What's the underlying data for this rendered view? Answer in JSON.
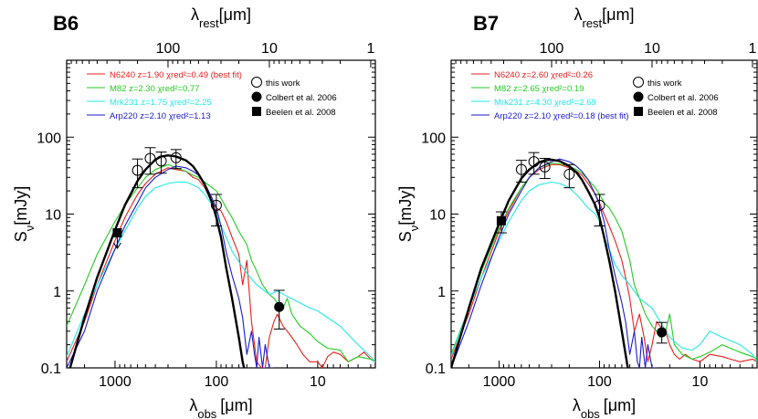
{
  "chart_data": [
    {
      "type": "line",
      "title": "B6",
      "xlabel_bottom": "λobs [μm]",
      "xlabel_top": "λrest[μm]",
      "ylabel": "Sν[mJy]",
      "xscale": "log",
      "yscale": "log",
      "xlim": [
        3000,
        2.7
      ],
      "ylim": [
        0.1,
        1000
      ],
      "x_ticks_bottom": [
        "1000",
        "100",
        "10"
      ],
      "x_ticks_top": [
        "100",
        "10",
        "1"
      ],
      "y_ticks": [
        "0.1",
        "1",
        "10",
        "100"
      ],
      "series": [
        {
          "name": "N6240",
          "color": "#e8201c",
          "label": "N6240  z=1.90  χred²=0.49 (best fit)",
          "x": [
            3000,
            2000,
            1500,
            1000,
            800,
            600,
            500,
            400,
            300,
            250,
            200,
            170,
            150,
            130,
            110,
            100,
            90,
            80,
            70,
            60,
            55,
            50,
            45,
            40,
            36,
            33,
            30,
            27,
            25,
            22,
            20,
            18,
            16,
            14,
            12,
            10,
            9,
            8,
            7,
            6,
            5,
            4,
            3.5,
            3,
            2.7
          ],
          "y": [
            0.12,
            0.4,
            1.2,
            4.5,
            9,
            18,
            25,
            33,
            40,
            38,
            36,
            30,
            28,
            22,
            14,
            12,
            11,
            8,
            5,
            3,
            1.2,
            2.5,
            0.4,
            0.12,
            0.1,
            0.1,
            0.25,
            0.4,
            0.5,
            0.35,
            0.3,
            0.25,
            0.2,
            0.15,
            0.12,
            0.12,
            0.1,
            0.14,
            0.16,
            0.15,
            0.12,
            0.14,
            0.16,
            0.13,
            0.12
          ]
        },
        {
          "name": "M82",
          "color": "#22cc22",
          "label": "M82  z=2.30  χred²=0.77",
          "x": [
            3000,
            2000,
            1500,
            1000,
            800,
            600,
            500,
            400,
            300,
            250,
            200,
            170,
            150,
            130,
            110,
            100,
            90,
            80,
            70,
            60,
            50,
            45,
            40,
            35,
            30,
            27,
            25,
            22,
            20,
            18,
            15,
            12,
            10,
            8,
            6,
            5,
            4,
            3,
            2.7
          ],
          "y": [
            0.35,
            1.2,
            3,
            8,
            13,
            22,
            30,
            38,
            44,
            40,
            36,
            32,
            30,
            26,
            22,
            20,
            16,
            12,
            9,
            6,
            4,
            2.5,
            1.8,
            1.2,
            0.9,
            0.8,
            0.7,
            0.6,
            0.8,
            0.5,
            0.35,
            0.28,
            0.22,
            0.18,
            0.17,
            0.12,
            0.14,
            0.13,
            0.12
          ]
        },
        {
          "name": "Mrk231",
          "color": "#22e8e8",
          "label": "Mrk231  z=1.75  χred²=2.25",
          "x": [
            3000,
            2000,
            1500,
            1000,
            800,
            600,
            500,
            400,
            300,
            250,
            200,
            170,
            150,
            130,
            110,
            100,
            90,
            80,
            70,
            60,
            50,
            40,
            30,
            25,
            20,
            15,
            12,
            10,
            8,
            6,
            4,
            3,
            2.7
          ],
          "y": [
            0.14,
            0.5,
            1.2,
            3.5,
            6,
            12,
            17,
            22,
            25,
            26,
            26,
            24,
            22,
            18,
            13,
            10,
            7,
            5,
            3.3,
            2.4,
            1.7,
            1.2,
            0.9,
            1.0,
            0.85,
            0.7,
            0.6,
            0.55,
            0.45,
            0.35,
            0.2,
            0.14,
            0.12
          ]
        },
        {
          "name": "Arp220",
          "color": "#1a1acc",
          "label": "Arp220  z=2.10  χred²=1.13",
          "x": [
            3000,
            2000,
            1500,
            1000,
            800,
            600,
            500,
            400,
            300,
            250,
            200,
            170,
            150,
            130,
            110,
            100,
            90,
            80,
            70,
            60,
            55,
            50,
            45,
            42,
            40,
            38,
            35,
            33,
            30,
            27
          ],
          "y": [
            0.1,
            0.3,
            1,
            3.5,
            7,
            14,
            22,
            30,
            38,
            42,
            40,
            36,
            32,
            25,
            16,
            12,
            7,
            3.2,
            1.6,
            0.8,
            0.45,
            0.15,
            0.3,
            0.15,
            0.1,
            0.25,
            0.1,
            0.2,
            0.1,
            0.1
          ]
        },
        {
          "name": "model",
          "color": "#000000",
          "label": "",
          "x": [
            3000,
            2000,
            1500,
            1000,
            800,
            600,
            500,
            400,
            350,
            300,
            250,
            200,
            170,
            150,
            130,
            110,
            100,
            90,
            80,
            70,
            60,
            55,
            50
          ],
          "y": [
            0.07,
            0.45,
            1.5,
            6.2,
            13,
            27,
            38,
            51,
            56,
            58,
            56,
            50,
            42,
            33,
            24,
            14,
            9,
            5,
            2,
            0.8,
            0.25,
            0.12,
            0.07
          ]
        }
      ],
      "points": [
        {
          "marker": "square-filled",
          "x": 950,
          "y": 5.7,
          "upper_limit": true
        },
        {
          "marker": "circle-open",
          "x": 600,
          "y": 37,
          "err_lo": 15,
          "err_hi": 15
        },
        {
          "marker": "circle-open",
          "x": 450,
          "y": 53,
          "err_lo": 20,
          "err_hi": 20
        },
        {
          "marker": "circle-open",
          "x": 350,
          "y": 49,
          "err_lo": 15,
          "err_hi": 15
        },
        {
          "marker": "circle-open",
          "x": 250,
          "y": 54,
          "err_lo": 15,
          "err_hi": 15
        },
        {
          "marker": "circle-open",
          "x": 100,
          "y": 13,
          "err_lo": 6,
          "err_hi": 5
        },
        {
          "marker": "circle-filled",
          "x": 24,
          "y": 0.62,
          "err_lo": 0.3,
          "err_hi": 0.4
        }
      ],
      "legend": [
        "this work",
        "Colbert et al. 2006",
        "Beelen et al. 2008"
      ]
    },
    {
      "type": "line",
      "title": "B7",
      "xlabel_bottom": "λobs [μm]",
      "xlabel_top": "λrest[μm]",
      "ylabel": "Sν[mJy]",
      "xscale": "log",
      "yscale": "log",
      "xlim": [
        3000,
        2.7
      ],
      "ylim": [
        0.1,
        1000
      ],
      "x_ticks_bottom": [
        "1000",
        "100",
        "10"
      ],
      "x_ticks_top": [
        "100",
        "10",
        "1"
      ],
      "y_ticks": [
        "0.1",
        "1",
        "10",
        "100"
      ],
      "series": [
        {
          "name": "N6240",
          "color": "#e8201c",
          "label": "N6240  z=2.60  χred²=0.26",
          "x": [
            3000,
            2000,
            1500,
            1000,
            800,
            600,
            500,
            400,
            300,
            250,
            200,
            170,
            150,
            130,
            110,
            100,
            90,
            80,
            70,
            60,
            55,
            50,
            45,
            40,
            36,
            33,
            30,
            27,
            25,
            22,
            20,
            18,
            16,
            14,
            12,
            10,
            8,
            6,
            5,
            4,
            3,
            2.7
          ],
          "y": [
            0.13,
            0.5,
            1.5,
            6,
            11,
            22,
            30,
            38,
            44,
            44,
            40,
            36,
            32,
            25,
            18,
            14,
            10,
            7,
            4.5,
            2.5,
            1.5,
            0.8,
            0.3,
            0.5,
            0.25,
            0.12,
            0.2,
            0.4,
            0.35,
            0.3,
            0.2,
            0.15,
            0.13,
            0.15,
            0.13,
            0.12,
            0.15,
            0.14,
            0.13,
            0.12,
            0.13,
            0.12
          ]
        },
        {
          "name": "M82",
          "color": "#22cc22",
          "label": "M82  z=2.65  χred²=0.19",
          "x": [
            3000,
            2000,
            1500,
            1000,
            800,
            600,
            500,
            400,
            300,
            250,
            200,
            170,
            150,
            130,
            110,
            100,
            90,
            80,
            70,
            60,
            50,
            45,
            40,
            35,
            30,
            27,
            25,
            22,
            20,
            18,
            15,
            12,
            10,
            8,
            6,
            5,
            4,
            3,
            2.7
          ],
          "y": [
            0.15,
            0.6,
            1.8,
            6.5,
            12,
            22,
            30,
            40,
            46,
            45,
            42,
            38,
            34,
            28,
            22,
            18,
            14,
            12,
            9,
            6,
            2.5,
            1.2,
            0.8,
            0.5,
            0.35,
            0.3,
            0.25,
            0.3,
            0.5,
            0.2,
            0.15,
            0.13,
            0.14,
            0.16,
            0.2,
            0.18,
            0.16,
            0.14,
            0.13
          ]
        },
        {
          "name": "Mrk231",
          "color": "#22e8e8",
          "label": "Mrk231  z=4.30  χred²=2.69",
          "x": [
            3000,
            2000,
            1500,
            1000,
            800,
            600,
            500,
            400,
            300,
            250,
            200,
            170,
            150,
            130,
            110,
            100,
            90,
            80,
            70,
            60,
            50,
            40,
            30,
            25,
            20,
            15,
            12,
            10,
            8,
            6,
            4,
            3,
            2.7
          ],
          "y": [
            0.14,
            0.6,
            1.5,
            4.5,
            8,
            15,
            20,
            24,
            26,
            25,
            22,
            18,
            15,
            12,
            10,
            8,
            5,
            3.5,
            2.2,
            1.6,
            1.2,
            0.8,
            0.6,
            0.4,
            0.25,
            0.18,
            0.17,
            0.2,
            0.3,
            0.25,
            0.2,
            0.15,
            0.12
          ]
        },
        {
          "name": "Arp220",
          "color": "#1a1acc",
          "label": "Arp220  z=2.10  χred²=0.18 (best fit)",
          "x": [
            3000,
            2000,
            1500,
            1000,
            800,
            600,
            500,
            400,
            300,
            250,
            200,
            170,
            150,
            130,
            110,
            100,
            90,
            80,
            70,
            60,
            55,
            50,
            45,
            42,
            40,
            38,
            35,
            33,
            30,
            27
          ],
          "y": [
            0.1,
            0.4,
            1.2,
            5,
            10,
            20,
            30,
            40,
            48,
            52,
            48,
            42,
            36,
            28,
            18,
            13,
            8,
            3.5,
            1.6,
            0.7,
            0.4,
            0.15,
            0.3,
            0.12,
            0.1,
            0.25,
            0.1,
            0.2,
            0.1,
            0.1
          ]
        },
        {
          "name": "model",
          "color": "#000000",
          "label": "",
          "x": [
            3000,
            2000,
            1500,
            1000,
            800,
            600,
            500,
            400,
            350,
            300,
            250,
            200,
            170,
            150,
            130,
            110,
            100,
            90,
            80,
            70,
            60,
            55,
            50
          ],
          "y": [
            0.1,
            0.6,
            2,
            7.5,
            15,
            29,
            38,
            47,
            50,
            51,
            49,
            42,
            35,
            28,
            20,
            13,
            9,
            5,
            2.5,
            1,
            0.3,
            0.15,
            0.07
          ]
        }
      ],
      "points": [
        {
          "marker": "square-filled",
          "x": 950,
          "y": 8.2,
          "err_lo": 2.5,
          "err_hi": 2.5
        },
        {
          "marker": "circle-open",
          "x": 600,
          "y": 38,
          "err_lo": 12,
          "err_hi": 12
        },
        {
          "marker": "circle-open",
          "x": 450,
          "y": 48,
          "err_lo": 15,
          "err_hi": 15
        },
        {
          "marker": "circle-open",
          "x": 350,
          "y": 41,
          "err_lo": 12,
          "err_hi": 12
        },
        {
          "marker": "circle-open",
          "x": 200,
          "y": 33,
          "err_lo": 11,
          "err_hi": 11
        },
        {
          "marker": "circle-open",
          "x": 100,
          "y": 13,
          "err_lo": 6,
          "err_hi": 5
        },
        {
          "marker": "circle-filled",
          "x": 24,
          "y": 0.29,
          "err_lo": 0.08,
          "err_hi": 0.1
        }
      ],
      "legend": [
        "this work",
        "Colbert et al. 2006",
        "Beelen et al. 2008"
      ]
    }
  ]
}
